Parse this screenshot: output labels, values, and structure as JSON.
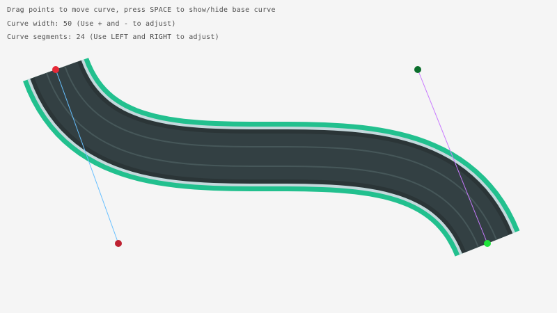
{
  "hud": {
    "line1": "Drag points to move curve, press SPACE to show/hide base curve",
    "line2": "Curve width: 50 (Use + and - to adjust)",
    "line3": "Curve segments: 24 (Use LEFT and RIGHT to adjust)"
  },
  "curve": {
    "width": 50,
    "segments": 24,
    "show_base_curve": false
  },
  "colors": {
    "background": "#f5f5f5",
    "text": "#505050",
    "road_border": "#22c08e",
    "road_edge": "#c4d8dc",
    "road_dark_edge": "#2b3537",
    "road_surface": "#334043",
    "lane_line": "#465759",
    "start_point": "#e62937",
    "start_control": "#be2131",
    "end_point": "#1fe43a",
    "end_control": "#0b6e2c",
    "start_handle_line": "#66bfff",
    "end_handle_line": "#c87aff"
  },
  "icons": {
    "start-point": "circle",
    "end-point": "circle",
    "control-points": "circle"
  }
}
